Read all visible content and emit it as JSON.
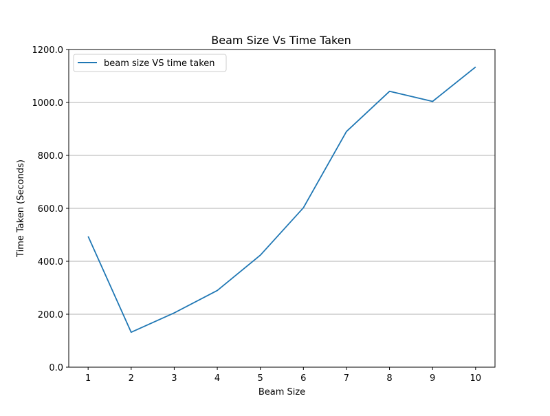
{
  "chart_data": {
    "type": "line",
    "title": "Beam Size Vs Time Taken",
    "xlabel": "Beam Size",
    "ylabel": "Time Taken (Seconds)",
    "x": [
      1,
      2,
      3,
      4,
      5,
      6,
      7,
      8,
      9,
      10
    ],
    "x_tick_labels": [
      "1",
      "2",
      "3",
      "4",
      "5",
      "6",
      "7",
      "8",
      "9",
      "10"
    ],
    "y_tick_labels": [
      "0.0",
      "200.0",
      "400.0",
      "600.0",
      "800.0",
      "1000.0",
      "1200.0"
    ],
    "y_ticks": [
      0,
      200,
      400,
      600,
      800,
      1000,
      1200
    ],
    "xlim": [
      0.55,
      10.45
    ],
    "ylim": [
      0,
      1200
    ],
    "grid": "horizontal",
    "legend_position": "top-left",
    "series": [
      {
        "name": "beam size VS time taken",
        "color": "#1f77b4",
        "values": [
          494,
          132,
          205,
          290,
          423,
          602,
          890,
          1042,
          1004,
          1134
        ]
      }
    ]
  }
}
